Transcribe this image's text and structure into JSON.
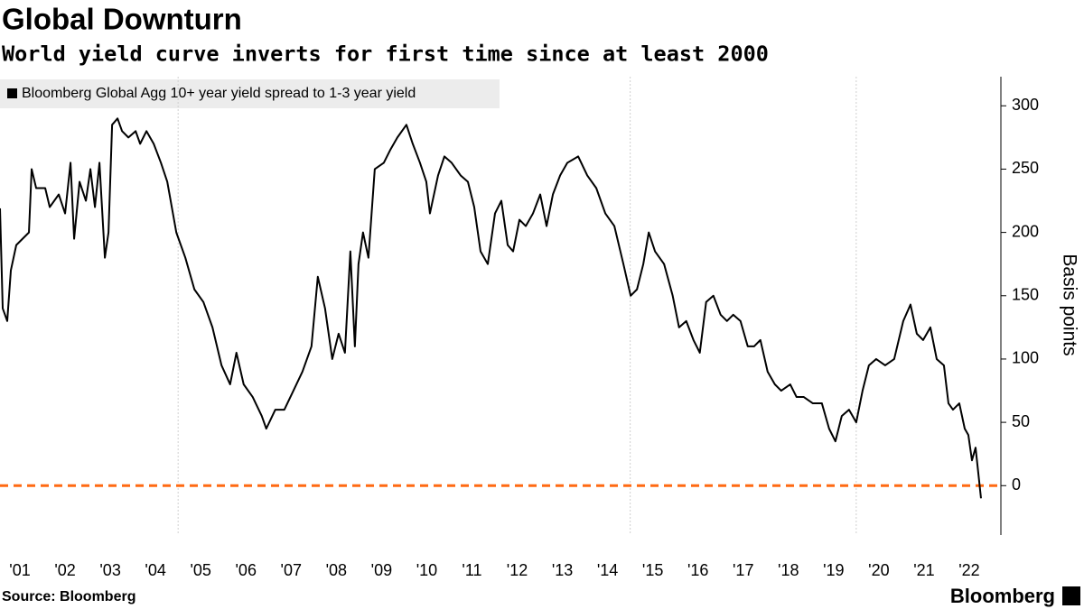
{
  "chart_data": {
    "type": "line",
    "title": "Global Downturn",
    "subtitle": "World yield curve inverts for first time since at least 2000",
    "y_label": "Basis points",
    "source": "Source: Bloomberg",
    "brand": "Bloomberg",
    "xlim": [
      2001.06,
      2023.2
    ],
    "ylim": [
      -39,
      323
    ],
    "yticks": [
      0,
      50,
      100,
      150,
      200,
      250,
      300
    ],
    "xticks": [
      {
        "value": 2001.5,
        "label": "'01"
      },
      {
        "value": 2002.5,
        "label": "'02"
      },
      {
        "value": 2003.5,
        "label": "'03"
      },
      {
        "value": 2004.5,
        "label": "'04"
      },
      {
        "value": 2005.5,
        "label": "'05"
      },
      {
        "value": 2006.5,
        "label": "'06"
      },
      {
        "value": 2007.5,
        "label": "'07"
      },
      {
        "value": 2008.5,
        "label": "'08"
      },
      {
        "value": 2009.5,
        "label": "'09"
      },
      {
        "value": 2010.5,
        "label": "'10"
      },
      {
        "value": 2011.5,
        "label": "'11"
      },
      {
        "value": 2012.5,
        "label": "'12"
      },
      {
        "value": 2013.5,
        "label": "'13"
      },
      {
        "value": 2014.5,
        "label": "'14"
      },
      {
        "value": 2015.5,
        "label": "'15"
      },
      {
        "value": 2016.5,
        "label": "'16"
      },
      {
        "value": 2017.5,
        "label": "'17"
      },
      {
        "value": 2018.5,
        "label": "'18"
      },
      {
        "value": 2019.5,
        "label": "'19"
      },
      {
        "value": 2020.5,
        "label": "'20"
      },
      {
        "value": 2021.5,
        "label": "'21"
      },
      {
        "value": 2022.5,
        "label": "'22"
      }
    ],
    "xgrid": [
      2005,
      2015,
      2020
    ],
    "reference_line": {
      "value": 0,
      "color": "#ff6a13"
    },
    "x": [
      2001.06,
      2001.12,
      2001.22,
      2001.3,
      2001.42,
      2001.56,
      2001.7,
      2001.76,
      2001.86,
      2002.06,
      2002.16,
      2002.36,
      2002.5,
      2002.62,
      2002.7,
      2002.82,
      2002.96,
      2003.06,
      2003.16,
      2003.26,
      2003.38,
      2003.46,
      2003.54,
      2003.66,
      2003.76,
      2003.9,
      2004.06,
      2004.16,
      2004.3,
      2004.46,
      2004.62,
      2004.76,
      2004.96,
      2005.16,
      2005.36,
      2005.56,
      2005.76,
      2005.96,
      2006.15,
      2006.29,
      2006.45,
      2006.65,
      2006.85,
      2006.95,
      2007.15,
      2007.35,
      2007.55,
      2007.75,
      2007.95,
      2008.09,
      2008.25,
      2008.41,
      2008.55,
      2008.69,
      2008.81,
      2008.91,
      2008.99,
      2009.09,
      2009.21,
      2009.35,
      2009.55,
      2009.69,
      2009.85,
      2010.05,
      2010.19,
      2010.35,
      2010.49,
      2010.57,
      2010.75,
      2010.89,
      2011.05,
      2011.25,
      2011.41,
      2011.55,
      2011.69,
      2011.85,
      2012.01,
      2012.15,
      2012.29,
      2012.41,
      2012.55,
      2012.69,
      2012.85,
      2013.01,
      2013.15,
      2013.29,
      2013.45,
      2013.61,
      2013.85,
      2014.05,
      2014.25,
      2014.45,
      2014.65,
      2014.85,
      2015.01,
      2015.15,
      2015.29,
      2015.41,
      2015.55,
      2015.75,
      2015.94,
      2016.08,
      2016.24,
      2016.4,
      2016.54,
      2016.68,
      2016.84,
      2017.0,
      2017.14,
      2017.28,
      2017.44,
      2017.6,
      2017.74,
      2017.88,
      2018.04,
      2018.2,
      2018.34,
      2018.54,
      2018.68,
      2018.84,
      2019.04,
      2019.24,
      2019.4,
      2019.54,
      2019.68,
      2019.84,
      2020.0,
      2020.14,
      2020.28,
      2020.44,
      2020.64,
      2020.84,
      2021.04,
      2021.2,
      2021.34,
      2021.48,
      2021.64,
      2021.78,
      2021.94,
      2022.04,
      2022.14,
      2022.28,
      2022.4,
      2022.48,
      2022.56,
      2022.64,
      2022.7,
      2022.76
    ],
    "series": [
      {
        "name": "Bloomberg Global Agg 10+ year yield spread to 1-3 year yield",
        "color": "#000000",
        "values": [
          219,
          140,
          130,
          170,
          190,
          195,
          200,
          250,
          235,
          235,
          220,
          230,
          215,
          255,
          195,
          240,
          225,
          250,
          220,
          255,
          180,
          200,
          285,
          290,
          280,
          275,
          280,
          270,
          280,
          270,
          255,
          240,
          200,
          180,
          155,
          145,
          125,
          95,
          80,
          105,
          80,
          70,
          55,
          45,
          60,
          60,
          75,
          90,
          110,
          165,
          140,
          100,
          120,
          105,
          185,
          110,
          175,
          200,
          180,
          250,
          255,
          265,
          275,
          285,
          270,
          255,
          240,
          215,
          245,
          260,
          255,
          245,
          240,
          220,
          185,
          175,
          215,
          225,
          190,
          185,
          210,
          205,
          215,
          230,
          205,
          230,
          245,
          255,
          260,
          245,
          235,
          215,
          205,
          175,
          150,
          155,
          175,
          200,
          185,
          175,
          150,
          125,
          130,
          115,
          105,
          145,
          150,
          135,
          130,
          135,
          130,
          110,
          110,
          115,
          90,
          80,
          75,
          80,
          70,
          70,
          65,
          65,
          45,
          35,
          55,
          60,
          50,
          75,
          95,
          100,
          95,
          100,
          130,
          143,
          120,
          115,
          125,
          100,
          95,
          65,
          60,
          65,
          45,
          40,
          20,
          30,
          10,
          -10
        ]
      }
    ]
  }
}
